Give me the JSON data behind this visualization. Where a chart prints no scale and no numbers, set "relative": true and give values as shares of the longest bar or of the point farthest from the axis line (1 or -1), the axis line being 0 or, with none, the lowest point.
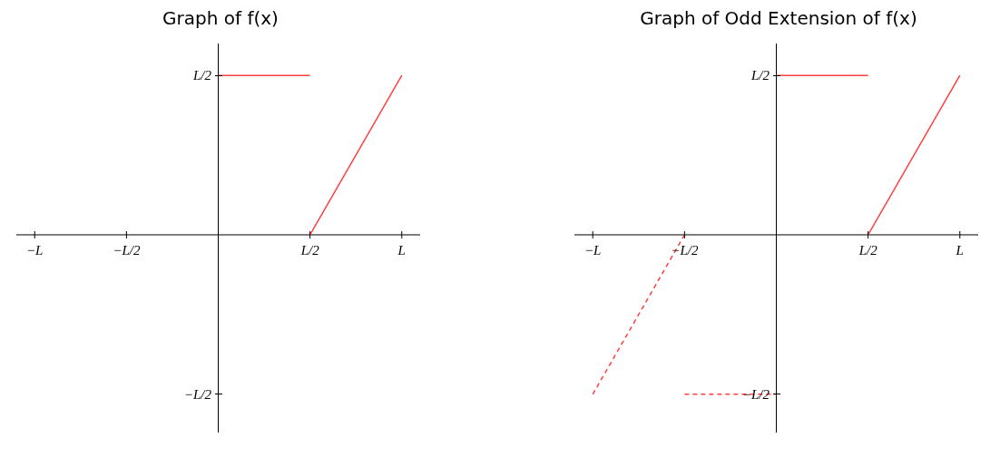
{
  "chart_data": [
    {
      "type": "line",
      "title": "Graph of f(x)",
      "relative": true,
      "categories": [
        "−L",
        "−L/2",
        null,
        "L/2",
        "L"
      ],
      "annotations": [
        "L/2",
        "−L/2"
      ],
      "series": [
        {
          "color": "#ff4040",
          "line_style": "solid",
          "values": [
            null,
            null,
            1,
            1,
            null
          ]
        },
        {
          "color": "#ff4040",
          "line_style": "solid",
          "values": [
            null,
            null,
            null,
            0,
            1
          ]
        }
      ]
    },
    {
      "type": "line",
      "title": "Graph of Odd Extension of f(x)",
      "relative": true,
      "categories": [
        "−L",
        "−L/2",
        null,
        "L/2",
        "L"
      ],
      "annotations": [
        "L/2",
        "−L/2"
      ],
      "series": [
        {
          "color": "#ff4040",
          "line_style": "solid",
          "values": [
            null,
            null,
            1,
            1,
            null
          ]
        },
        {
          "color": "#ff4040",
          "line_style": "solid",
          "values": [
            null,
            null,
            null,
            0,
            1
          ]
        },
        {
          "color": "#ff4040",
          "line_style": "dashed",
          "values": [
            -1,
            0,
            null,
            null,
            null
          ]
        },
        {
          "color": "#ff4040",
          "line_style": "dashed",
          "values": [
            null,
            -1,
            -1,
            null,
            null
          ]
        }
      ]
    }
  ]
}
